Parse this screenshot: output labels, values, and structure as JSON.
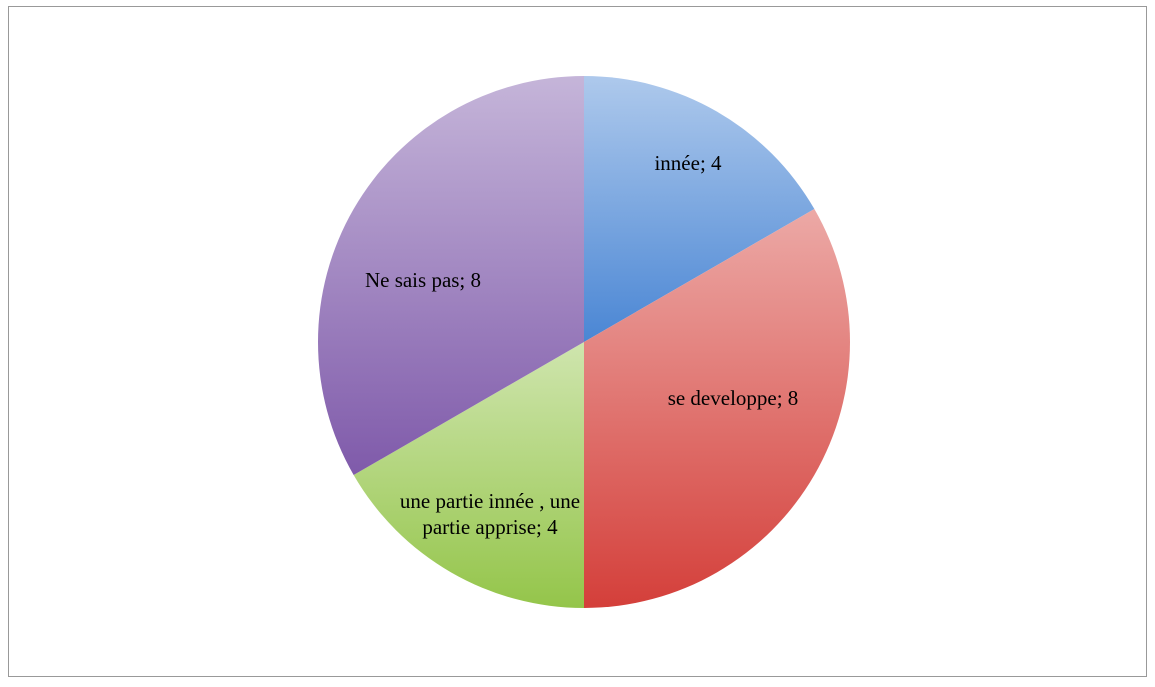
{
  "chart_data": {
    "type": "pie",
    "categories": [
      "innée",
      "se developpe",
      "une partie innée , une partie apprise",
      "Ne sais pas"
    ],
    "values": [
      4,
      8,
      4,
      8
    ],
    "value_labels": [
      "innée; 4",
      "se developpe; 8",
      "une partie innée , une partie apprise; 4",
      "Ne sais pas; 8"
    ],
    "colors": [
      "#4a86d4",
      "#d43f3a",
      "#94c54a",
      "#7f5aaa"
    ]
  }
}
